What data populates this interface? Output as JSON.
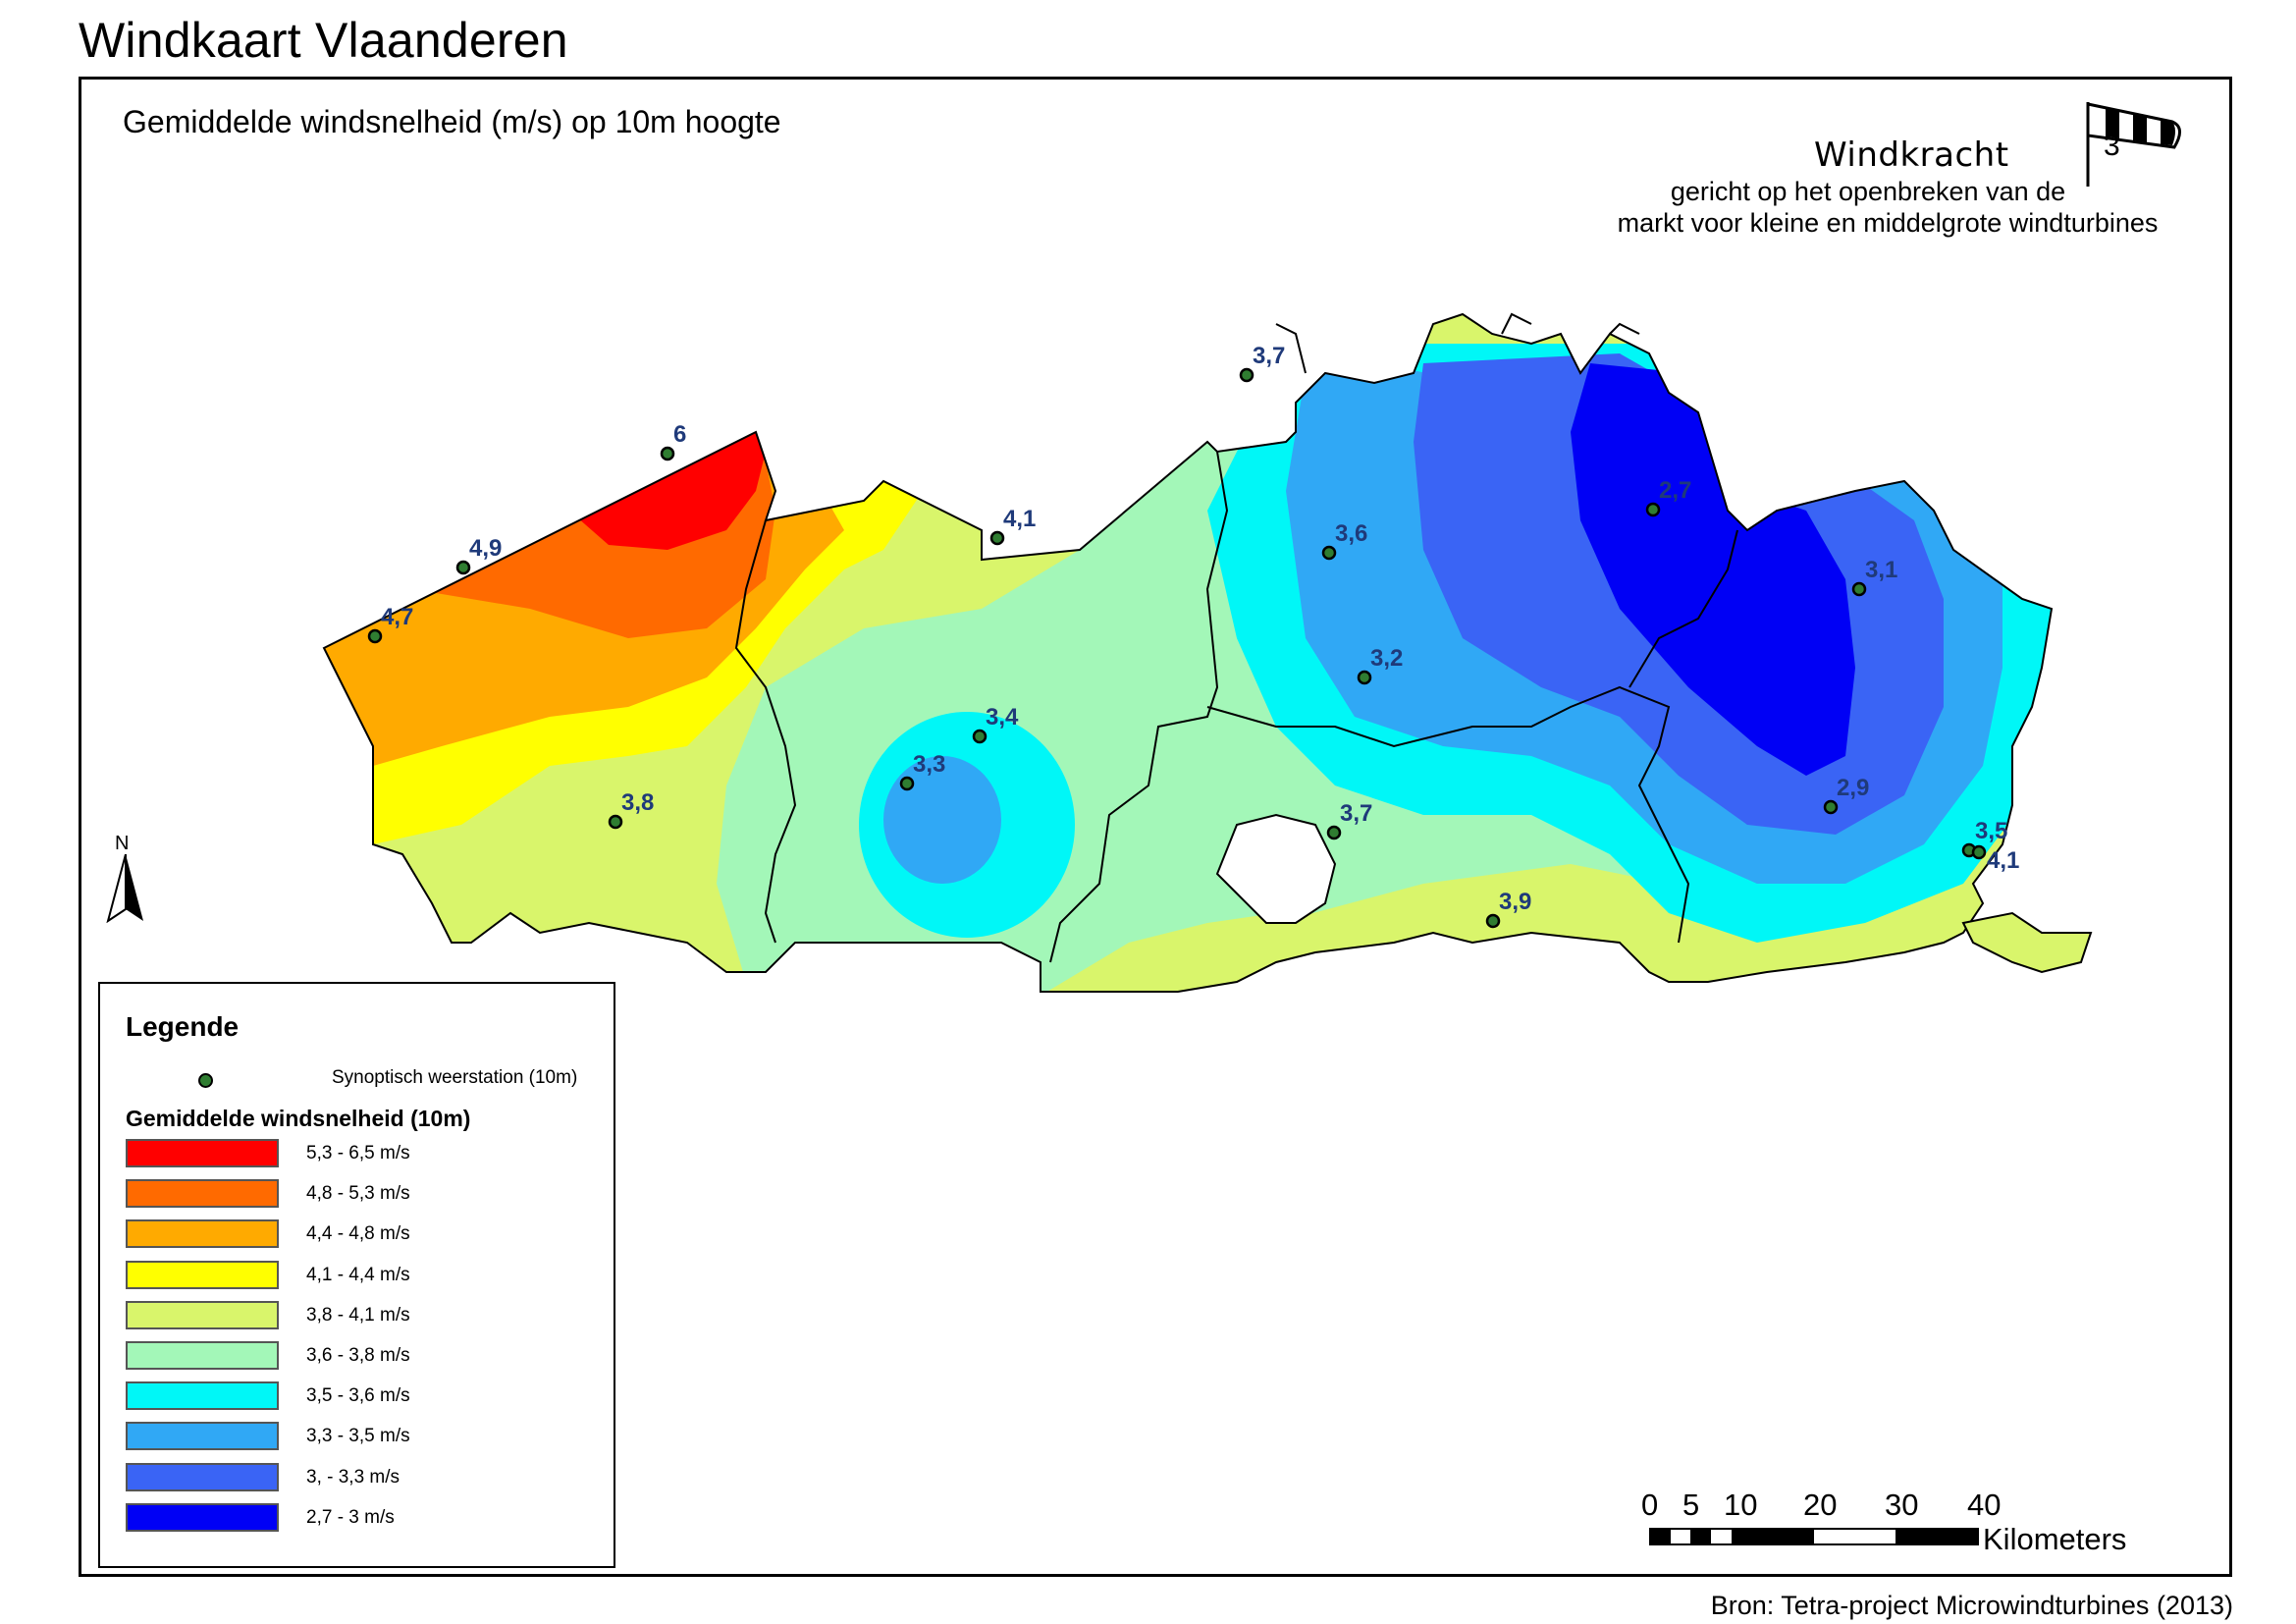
{
  "page_title": "Windkaart Vlaanderen",
  "subtitle": "Gemiddelde windsnelheid (m/s) op 10m hoogte",
  "brand": {
    "name": "Windkracht",
    "number": "3",
    "line1": "gericht op het openbreken van de",
    "line2": "markt voor kleine en middelgrote windturbines"
  },
  "north_label": "N",
  "stations": [
    {
      "id": "s1",
      "label": "6"
    },
    {
      "id": "s2",
      "label": "4,9"
    },
    {
      "id": "s3",
      "label": "4,7"
    },
    {
      "id": "s4",
      "label": "4,1"
    },
    {
      "id": "s5",
      "label": "3,7"
    },
    {
      "id": "s6",
      "label": "3,6"
    },
    {
      "id": "s7",
      "label": "3,2"
    },
    {
      "id": "s8",
      "label": "3,4"
    },
    {
      "id": "s9",
      "label": "3,3"
    },
    {
      "id": "s10",
      "label": "3,8"
    },
    {
      "id": "s11",
      "label": "3,7"
    },
    {
      "id": "s12",
      "label": "3,9"
    },
    {
      "id": "s13",
      "label": "2,9"
    },
    {
      "id": "s14",
      "label": "3,1"
    },
    {
      "id": "s15",
      "label": "3,5"
    },
    {
      "id": "s16",
      "label": "4,1"
    },
    {
      "id": "s17",
      "label": "2,7"
    }
  ],
  "legend": {
    "title": "Legende",
    "station_label": "Synoptisch weerstation (10m)",
    "classes_title": "Gemiddelde windsnelheid (10m)",
    "classes": [
      {
        "label": "5,3 - 6,5 m/s",
        "color": "#ff0000"
      },
      {
        "label": "4,8 - 5,3 m/s",
        "color": "#ff6a00"
      },
      {
        "label": "4,4 - 4,8 m/s",
        "color": "#ffaa00"
      },
      {
        "label": "4,1 - 4,4 m/s",
        "color": "#ffff00"
      },
      {
        "label": "3,8 - 4,1 m/s",
        "color": "#d9f56b"
      },
      {
        "label": "3,6 - 3,8 m/s",
        "color": "#a3f7b8"
      },
      {
        "label": "3,5 - 3,6 m/s",
        "color": "#00f7f7"
      },
      {
        "label": "3,3 - 3,5 m/s",
        "color": "#30a8f5"
      },
      {
        "label": "3, - 3,3 m/s",
        "color": "#3a64f5"
      },
      {
        "label": "2,7 - 3 m/s",
        "color": "#0000f5"
      }
    ]
  },
  "scalebar": {
    "ticks": [
      "0",
      "5",
      "10",
      "20",
      "30",
      "40"
    ],
    "unit": "Kilometers"
  },
  "source": "Bron: Tetra-project Microwindturbines (2013)"
}
